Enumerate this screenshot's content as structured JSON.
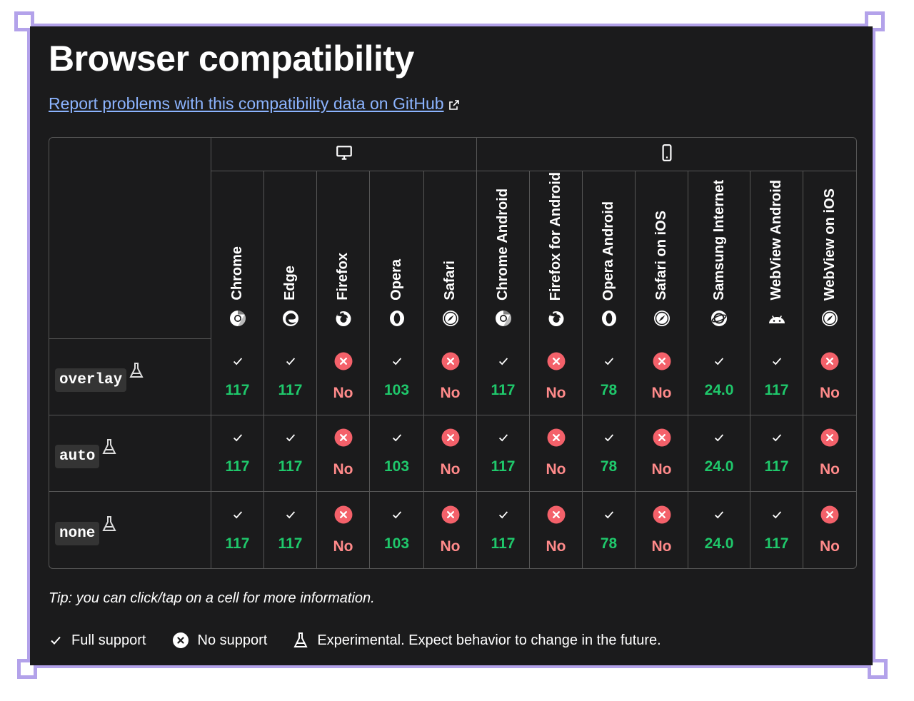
{
  "title": "Browser compatibility",
  "report_link": "Report problems with this compatibility data on GitHub",
  "platforms": {
    "desktop_icon": "desktop-icon",
    "mobile_icon": "mobile-icon"
  },
  "browsers": [
    {
      "name": "Chrome",
      "icon": "chrome-icon"
    },
    {
      "name": "Edge",
      "icon": "edge-icon"
    },
    {
      "name": "Firefox",
      "icon": "firefox-icon"
    },
    {
      "name": "Opera",
      "icon": "opera-icon"
    },
    {
      "name": "Safari",
      "icon": "safari-icon"
    },
    {
      "name": "Chrome Android",
      "icon": "chrome-icon"
    },
    {
      "name": "Firefox for Android",
      "icon": "firefox-icon"
    },
    {
      "name": "Opera Android",
      "icon": "opera-icon"
    },
    {
      "name": "Safari on iOS",
      "icon": "safari-icon"
    },
    {
      "name": "Samsung Internet",
      "icon": "samsung-internet-icon"
    },
    {
      "name": "WebView Android",
      "icon": "android-icon"
    },
    {
      "name": "WebView on iOS",
      "icon": "safari-icon"
    }
  ],
  "features": [
    {
      "name": "overlay",
      "support": [
        "117",
        "117",
        "No",
        "103",
        "No",
        "117",
        "No",
        "78",
        "No",
        "24.0",
        "117",
        "No"
      ]
    },
    {
      "name": "auto",
      "support": [
        "117",
        "117",
        "No",
        "103",
        "No",
        "117",
        "No",
        "78",
        "No",
        "24.0",
        "117",
        "No"
      ]
    },
    {
      "name": "none",
      "support": [
        "117",
        "117",
        "No",
        "103",
        "No",
        "117",
        "No",
        "78",
        "No",
        "24.0",
        "117",
        "No"
      ]
    }
  ],
  "tip": "Tip: you can click/tap on a cell for more information.",
  "legend": {
    "full": "Full support",
    "none": "No support",
    "experimental": "Experimental. Expect behavior to change in the future."
  },
  "colors": {
    "yes": "#1fc86b",
    "no": "#ff8a8a",
    "link": "#8cb4ff",
    "frame": "#b3a2ea"
  }
}
